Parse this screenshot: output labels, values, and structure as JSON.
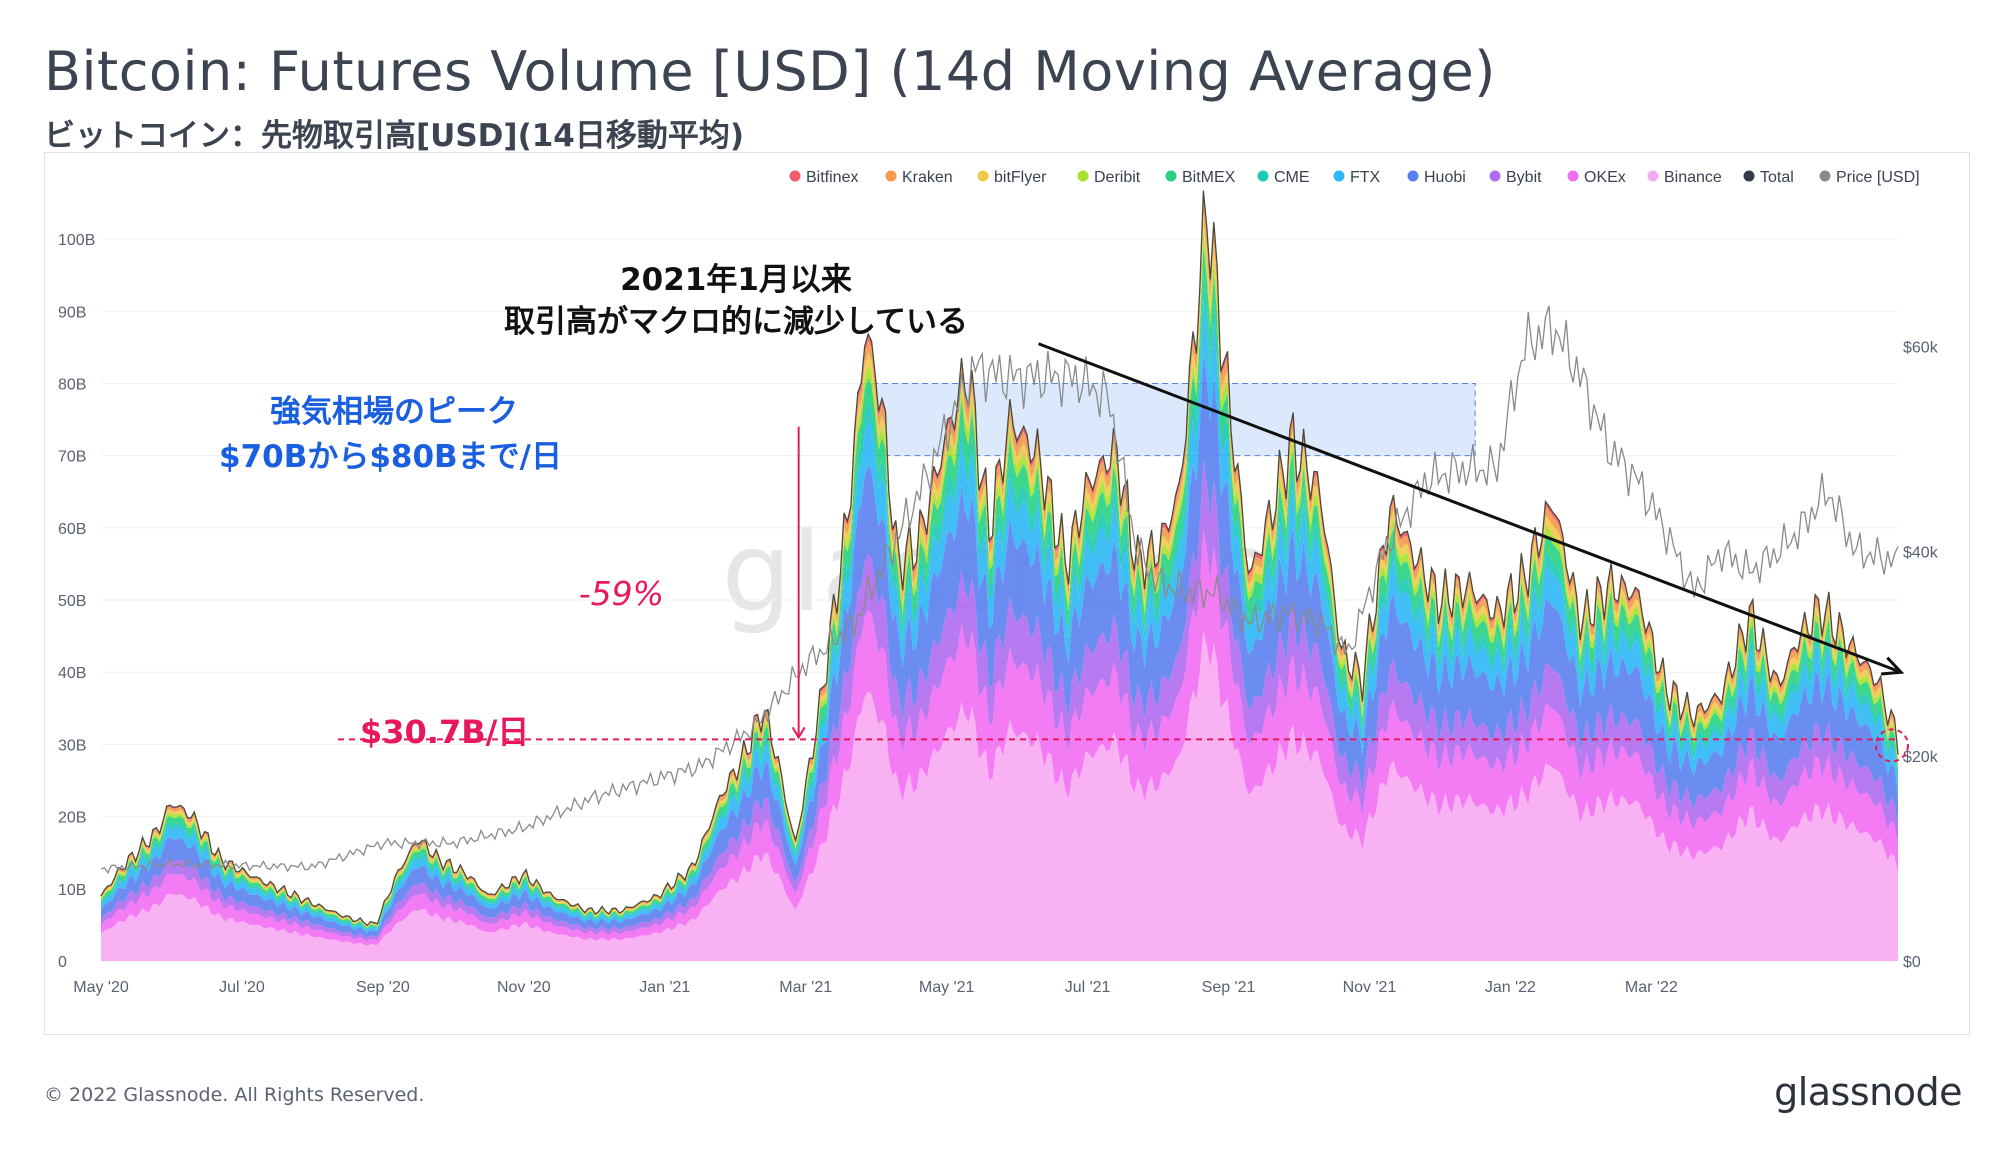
{
  "title": "Bitcoin: Futures Volume [USD] (14d Moving Average)",
  "subtitle": "ビットコイン：先物取引高[USD](14日移動平均)",
  "footer": "© 2022 Glassnode. All Rights Reserved.",
  "brand": "glassnode",
  "watermark": "glassnode",
  "annotations": {
    "trend_line1": "2021年1月以来",
    "trend_line2": "取引高がマクロ的に減少している",
    "peak_line1": "強気相場のピーク",
    "peak_line2": "$70Bから$80Bまで/日",
    "drop": "-59%",
    "current": "$30.7B/日"
  },
  "colors": {
    "highlight": "#1a5fe0",
    "emphasis": "#e8185f",
    "band_fill": "#d6e4fb",
    "price_line": "#8a8a8a"
  },
  "chart_data": {
    "type": "area",
    "stacked": true,
    "xlabel": "",
    "ylabel": "",
    "ylim": [
      0,
      105
    ],
    "y_unit": "B USD",
    "y2lim": [
      0,
      74
    ],
    "y2_unit": "k USD",
    "y_ticks": [
      "0",
      "10B",
      "20B",
      "30B",
      "40B",
      "50B",
      "60B",
      "70B",
      "80B",
      "90B",
      "100B"
    ],
    "y2_ticks": [
      "$0",
      "$20k",
      "$40k",
      "$60k"
    ],
    "x_ticks": [
      "May '20",
      "Jul '20",
      "Sep '20",
      "Nov '20",
      "Jan '21",
      "Mar '21",
      "May '21",
      "Jul '21",
      "Sep '21",
      "Nov '21",
      "Jan '22",
      "Mar '22"
    ],
    "legend": [
      "Bitfinex",
      "Kraken",
      "bitFlyer",
      "Deribit",
      "BitMEX",
      "CME",
      "FTX",
      "Huobi",
      "Bybit",
      "OKEx",
      "Binance",
      "Total",
      "Price [USD]"
    ],
    "legend_colors": [
      "#f05a6b",
      "#f2994a",
      "#f2c94c",
      "#a6e22e",
      "#27d17f",
      "#1cc9b5",
      "#2db7f5",
      "#5b7ff0",
      "#b06cf0",
      "#f26df2",
      "#f7a8f2",
      "#333b47",
      "#8a8a8a"
    ],
    "month_index_range": [
      0,
      25.5
    ],
    "total_volume_B": [
      [
        0,
        9
      ],
      [
        0.3,
        13
      ],
      [
        0.8,
        18
      ],
      [
        1.0,
        22
      ],
      [
        1.3,
        20
      ],
      [
        1.7,
        14
      ],
      [
        2.3,
        11
      ],
      [
        3.0,
        8
      ],
      [
        3.5,
        6
      ],
      [
        3.9,
        5
      ],
      [
        4.2,
        12
      ],
      [
        4.5,
        17
      ],
      [
        4.8,
        14
      ],
      [
        5.2,
        12
      ],
      [
        5.5,
        9
      ],
      [
        6.0,
        12
      ],
      [
        6.4,
        9
      ],
      [
        6.9,
        7
      ],
      [
        7.4,
        7
      ],
      [
        7.9,
        9
      ],
      [
        8.4,
        13
      ],
      [
        8.8,
        23
      ],
      [
        9.1,
        28
      ],
      [
        9.4,
        35
      ],
      [
        9.6,
        28
      ],
      [
        9.85,
        16
      ],
      [
        10.2,
        35
      ],
      [
        10.6,
        62
      ],
      [
        10.85,
        88
      ],
      [
        11.1,
        76
      ],
      [
        11.3,
        55
      ],
      [
        11.6,
        58
      ],
      [
        12.0,
        73
      ],
      [
        12.3,
        82
      ],
      [
        12.6,
        60
      ],
      [
        12.9,
        75
      ],
      [
        13.3,
        70
      ],
      [
        13.7,
        55
      ],
      [
        14.0,
        66
      ],
      [
        14.4,
        71
      ],
      [
        14.7,
        55
      ],
      [
        15.0,
        57
      ],
      [
        15.3,
        65
      ],
      [
        15.7,
        105
      ],
      [
        16.0,
        78
      ],
      [
        16.3,
        53
      ],
      [
        16.6,
        62
      ],
      [
        16.9,
        72
      ],
      [
        17.3,
        65
      ],
      [
        17.6,
        43
      ],
      [
        17.9,
        39
      ],
      [
        18.3,
        63
      ],
      [
        18.7,
        55
      ],
      [
        19.0,
        50
      ],
      [
        19.4,
        52
      ],
      [
        19.8,
        48
      ],
      [
        20.2,
        53
      ],
      [
        20.6,
        64
      ],
      [
        21.0,
        47
      ],
      [
        21.4,
        52
      ],
      [
        21.8,
        51
      ],
      [
        22.2,
        38
      ],
      [
        22.6,
        34
      ],
      [
        23.0,
        37
      ],
      [
        23.4,
        48
      ],
      [
        23.8,
        38
      ],
      [
        24.1,
        45
      ],
      [
        24.4,
        49
      ],
      [
        24.8,
        44
      ],
      [
        25.2,
        39
      ],
      [
        25.5,
        30.7
      ]
    ],
    "series_shares": {
      "Binance": 0.43,
      "OKEx": 0.13,
      "Bybit": 0.09,
      "Huobi": 0.14,
      "FTX": 0.07,
      "CME": 0.03,
      "BitMEX": 0.04,
      "Deribit": 0.02,
      "bitFlyer": 0.02,
      "Kraken": 0.02,
      "Bitfinex": 0.01
    },
    "price_k_USD": [
      [
        0,
        9
      ],
      [
        1,
        9.5
      ],
      [
        2,
        9.3
      ],
      [
        3,
        9.2
      ],
      [
        4,
        11.5
      ],
      [
        5,
        11.5
      ],
      [
        6,
        13
      ],
      [
        7,
        16
      ],
      [
        8.5,
        19
      ],
      [
        9.3,
        23
      ],
      [
        10,
        29
      ],
      [
        10.7,
        33
      ],
      [
        11.2,
        40
      ],
      [
        11.7,
        47
      ],
      [
        12.0,
        52
      ],
      [
        12.4,
        58
      ],
      [
        12.8,
        57
      ],
      [
        13.3,
        57
      ],
      [
        13.8,
        57
      ],
      [
        14.3,
        55
      ],
      [
        14.7,
        40
      ],
      [
        15.0,
        37
      ],
      [
        15.4,
        36
      ],
      [
        15.8,
        36
      ],
      [
        16.3,
        33
      ],
      [
        16.8,
        34
      ],
      [
        17.3,
        33
      ],
      [
        17.7,
        30
      ],
      [
        18.2,
        40
      ],
      [
        18.8,
        47
      ],
      [
        19.3,
        48
      ],
      [
        19.8,
        48
      ],
      [
        20.2,
        60
      ],
      [
        20.6,
        62
      ],
      [
        21.0,
        57
      ],
      [
        21.4,
        50
      ],
      [
        21.8,
        47
      ],
      [
        22.2,
        42
      ],
      [
        22.6,
        36
      ],
      [
        23.0,
        40
      ],
      [
        23.4,
        38
      ],
      [
        23.8,
        40
      ],
      [
        24.1,
        42
      ],
      [
        24.5,
        46
      ],
      [
        24.9,
        40
      ],
      [
        25.5,
        39
      ]
    ],
    "reference_line_B": 30.7,
    "peak_band_B": [
      70,
      80
    ],
    "peak_band_months": [
      10.8,
      19.5
    ],
    "trend_line": [
      [
        13.9,
        85.5
      ],
      [
        25.6,
        40
      ]
    ],
    "drop_arrow": {
      "x_month": 9.9,
      "from_B": 74,
      "to_B": 30.7,
      "percent": -59
    }
  }
}
